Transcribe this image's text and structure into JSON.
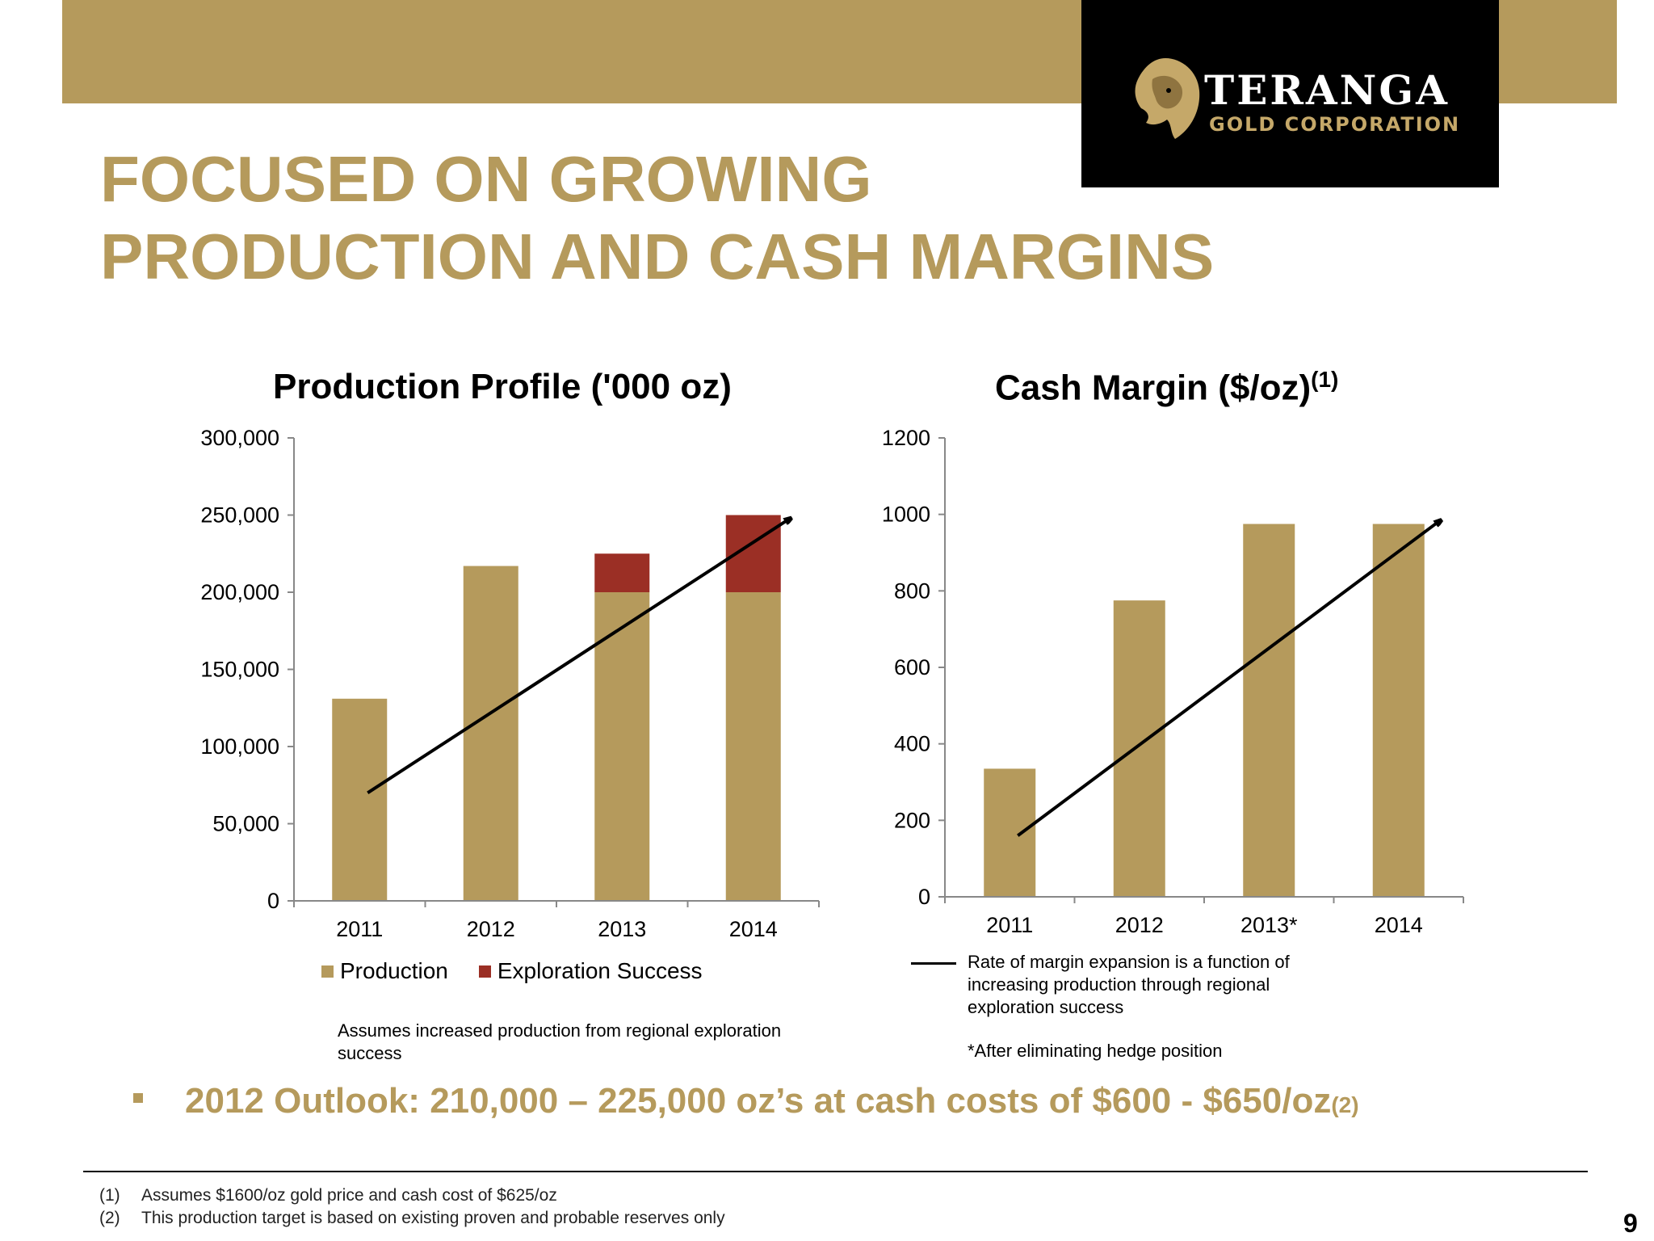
{
  "header": {
    "logo_name": "TERANGA",
    "logo_subtitle": "GOLD CORPORATION",
    "logo_icon": "lion-head-icon"
  },
  "title": {
    "line1": "FOCUSED ON GROWING",
    "line2": "PRODUCTION AND CASH MARGINS"
  },
  "colors": {
    "gold": "#b59a5c",
    "red": "#9b2f25",
    "black": "#000000"
  },
  "chart_data": [
    {
      "type": "bar",
      "stacked": true,
      "title": "Production Profile ('000 oz)",
      "categories": [
        "2011",
        "2012",
        "2013",
        "2014"
      ],
      "series": [
        {
          "name": "Production",
          "color": "#b59a5c",
          "values": [
            131000,
            217000,
            200000,
            200000
          ]
        },
        {
          "name": "Exploration Success",
          "color": "#9b2f25",
          "values": [
            0,
            0,
            25000,
            50000
          ]
        }
      ],
      "ylim": [
        0,
        300000
      ],
      "yticks": [
        0,
        50000,
        100000,
        150000,
        200000,
        250000,
        300000
      ],
      "ytick_labels": [
        "0",
        "50,000",
        "100,000",
        "150,000",
        "200,000",
        "250,000",
        "300,000"
      ],
      "trend_arrow": {
        "from": [
          "2011",
          70000
        ],
        "to": [
          "2014",
          248000
        ]
      },
      "legend_position": "bottom",
      "note": "Assumes increased production from regional exploration success"
    },
    {
      "type": "bar",
      "title": "Cash Margin ($/oz)",
      "title_sup": "(1)",
      "categories": [
        "2011",
        "2012",
        "2013*",
        "2014"
      ],
      "series": [
        {
          "color": "#b59a5c",
          "values": [
            335,
            775,
            975,
            975
          ]
        }
      ],
      "ylim": [
        0,
        1200
      ],
      "yticks": [
        0,
        200,
        400,
        600,
        800,
        1000,
        1200
      ],
      "ytick_labels": [
        "0",
        "200",
        "400",
        "600",
        "800",
        "1000",
        "1200"
      ],
      "trend_arrow": {
        "from": [
          "2011",
          160
        ],
        "to": [
          "2014",
          985
        ]
      },
      "legend_position": "bottom",
      "trend_legend": "Rate of margin expansion is a function of increasing production through regional exploration success",
      "footnote": "*After eliminating hedge position"
    }
  ],
  "outlook": {
    "text": "2012 Outlook:  210,000 – 225,000 oz’s at cash costs of $600 - $650/oz",
    "sup": "(2)"
  },
  "footnotes": [
    {
      "num": "(1)",
      "text": "Assumes $1600/oz gold price and cash cost of $625/oz"
    },
    {
      "num": "(2)",
      "text": "This production target is based on existing proven and probable reserves only"
    }
  ],
  "page_number": "9"
}
